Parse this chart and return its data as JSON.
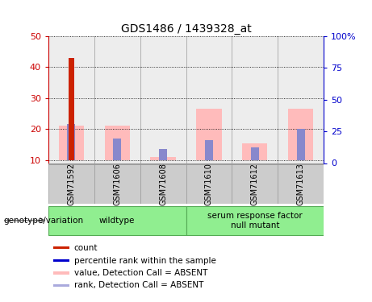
{
  "title": "GDS1486 / 1439328_at",
  "samples": [
    "GSM71592",
    "GSM71606",
    "GSM71608",
    "GSM71610",
    "GSM71612",
    "GSM71613"
  ],
  "ylim_left": [
    9,
    50
  ],
  "ylim_right": [
    0,
    100
  ],
  "yticks_left": [
    10,
    20,
    30,
    40,
    50
  ],
  "yticks_right": [
    0,
    25,
    50,
    75,
    100
  ],
  "yticklabels_right": [
    "0",
    "25",
    "50",
    "75",
    "100%"
  ],
  "red_bars": [
    43,
    0,
    0,
    0,
    0,
    0
  ],
  "pink_bars_top": [
    21.0,
    21.0,
    11.0,
    26.5,
    15.5,
    26.5
  ],
  "blue_bars_top": [
    21.5,
    17.0,
    13.5,
    16.5,
    14.0,
    20.0
  ],
  "bar_bottom": 10,
  "groups": [
    {
      "label": "wildtype",
      "sample_indices": [
        0,
        1,
        2
      ]
    },
    {
      "label": "serum response factor\nnull mutant",
      "sample_indices": [
        3,
        4,
        5
      ]
    }
  ],
  "group_label": "genotype/variation",
  "group_color": "#90ee90",
  "col_bg_color": "#cccccc",
  "left_tick_color": "#cc0000",
  "right_tick_color": "#0000cc",
  "red_color": "#cc2200",
  "pink_color": "#ffbbbb",
  "blue_color": "#8888cc",
  "legend_items": [
    {
      "color": "#cc2200",
      "label": "count"
    },
    {
      "color": "#0000cc",
      "label": "percentile rank within the sample"
    },
    {
      "color": "#ffbbbb",
      "label": "value, Detection Call = ABSENT"
    },
    {
      "color": "#aaaadd",
      "label": "rank, Detection Call = ABSENT"
    }
  ]
}
